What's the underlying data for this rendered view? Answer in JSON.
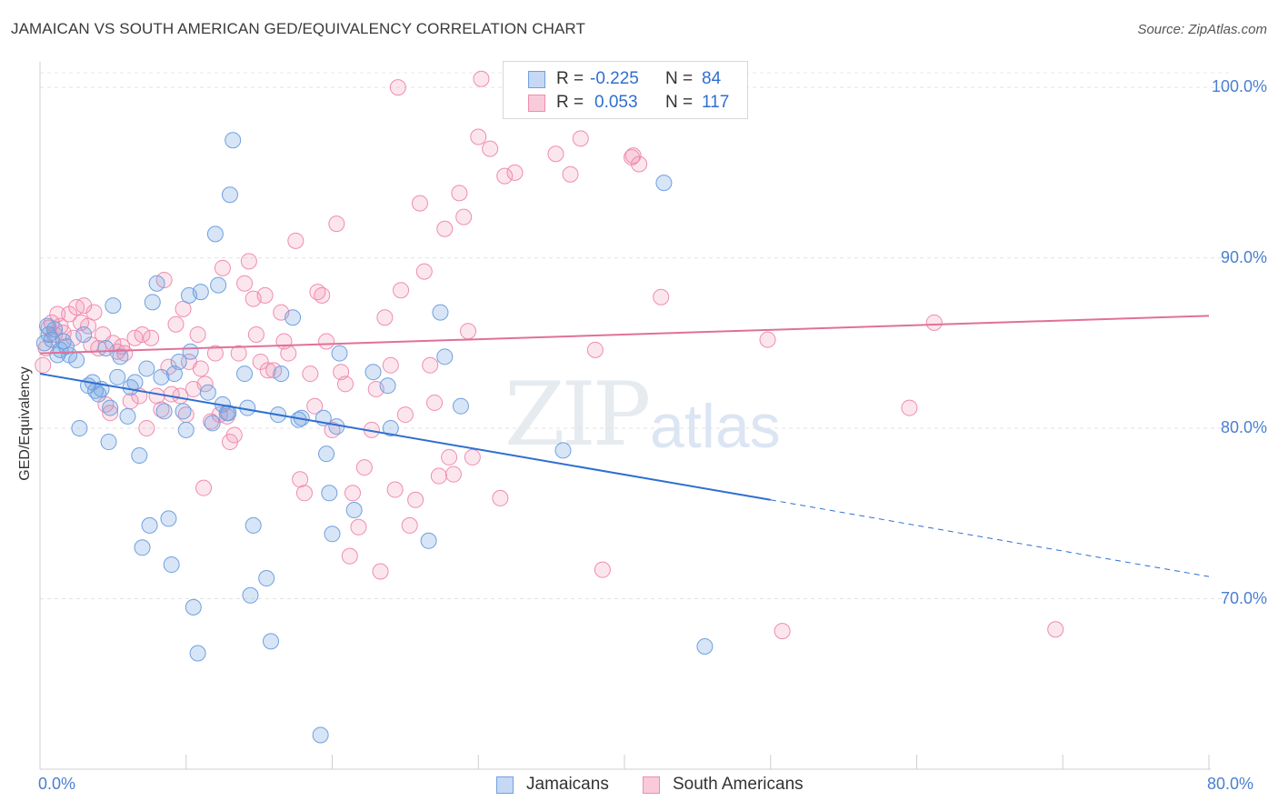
{
  "title": "JAMAICAN VS SOUTH AMERICAN GED/EQUIVALENCY CORRELATION CHART",
  "source": "Source: ZipAtlas.com",
  "watermark": {
    "zip": "ZIP",
    "atlas": "atlas"
  },
  "colors": {
    "jamaicans": "#6fa0e0",
    "south_americans": "#f08cae",
    "jam_line": "#2f6fd0",
    "sa_line": "#e0709a"
  },
  "legend": {
    "rows": [
      {
        "r_label": "R =",
        "r_value": "-0.225",
        "n_label": "N =",
        "n_value": "84"
      },
      {
        "r_label": "R =",
        "r_value": "0.053",
        "n_label": "N =",
        "n_value": "117"
      }
    ]
  },
  "bottom_legend": {
    "jamaicans": "Jamaicans",
    "south_americans": "South Americans"
  },
  "chart_data": {
    "type": "scatter",
    "title": "JAMAICAN VS SOUTH AMERICAN GED/EQUIVALENCY CORRELATION CHART",
    "xlabel": "",
    "ylabel": "GED/Equivalency",
    "xlim": [
      0,
      80
    ],
    "ylim": [
      60,
      101.5
    ],
    "y_ticks": [
      {
        "value": 70,
        "label": "70.0%"
      },
      {
        "value": 80,
        "label": "80.0%"
      },
      {
        "value": 90,
        "label": "90.0%"
      },
      {
        "value": 100,
        "label": "100.0%"
      }
    ],
    "x_tick_labels": [
      {
        "value": 0,
        "label": "0.0%"
      },
      {
        "value": 80,
        "label": "80.0%"
      }
    ],
    "grid": true,
    "series": [
      {
        "name": "Jamaicans",
        "r": -0.225,
        "n": 84,
        "trend": {
          "x0": 0,
          "y0": 83.2,
          "x1": 50,
          "y1": 75.8,
          "dashed_to_x": 80,
          "dashed_to_y": 71.3
        },
        "points": [
          [
            0.3,
            85.0
          ],
          [
            0.5,
            86.0
          ],
          [
            0.6,
            85.5
          ],
          [
            0.8,
            85.2
          ],
          [
            1.0,
            85.8
          ],
          [
            1.2,
            84.3
          ],
          [
            1.4,
            84.6
          ],
          [
            1.6,
            85.1
          ],
          [
            1.8,
            84.8
          ],
          [
            2.0,
            84.3
          ],
          [
            2.5,
            84.0
          ],
          [
            2.7,
            80.0
          ],
          [
            3.0,
            85.5
          ],
          [
            3.3,
            82.5
          ],
          [
            3.6,
            82.7
          ],
          [
            3.8,
            82.2
          ],
          [
            4.0,
            82.0
          ],
          [
            4.2,
            82.3
          ],
          [
            4.5,
            84.7
          ],
          [
            4.7,
            79.2
          ],
          [
            4.8,
            81.2
          ],
          [
            5.0,
            87.2
          ],
          [
            5.3,
            83.0
          ],
          [
            5.5,
            84.2
          ],
          [
            6.0,
            80.7
          ],
          [
            6.2,
            82.4
          ],
          [
            6.5,
            82.7
          ],
          [
            6.8,
            78.4
          ],
          [
            7.0,
            73.0
          ],
          [
            7.3,
            83.5
          ],
          [
            7.5,
            74.3
          ],
          [
            7.7,
            87.4
          ],
          [
            8.0,
            88.5
          ],
          [
            8.3,
            83.0
          ],
          [
            8.5,
            81.0
          ],
          [
            8.8,
            74.7
          ],
          [
            9.0,
            72.0
          ],
          [
            9.2,
            83.2
          ],
          [
            9.5,
            83.9
          ],
          [
            9.8,
            81.0
          ],
          [
            10.0,
            79.9
          ],
          [
            10.2,
            87.8
          ],
          [
            10.3,
            84.5
          ],
          [
            10.5,
            69.5
          ],
          [
            10.8,
            66.8
          ],
          [
            11.0,
            88.0
          ],
          [
            11.5,
            82.1
          ],
          [
            11.8,
            80.3
          ],
          [
            12.0,
            91.4
          ],
          [
            12.2,
            88.4
          ],
          [
            12.5,
            81.4
          ],
          [
            12.8,
            80.9
          ],
          [
            13.0,
            93.7
          ],
          [
            13.2,
            96.9
          ],
          [
            14.0,
            83.2
          ],
          [
            14.2,
            81.2
          ],
          [
            14.4,
            70.2
          ],
          [
            14.6,
            74.3
          ],
          [
            15.5,
            71.2
          ],
          [
            15.8,
            67.5
          ],
          [
            16.5,
            83.2
          ],
          [
            17.3,
            86.5
          ],
          [
            17.7,
            80.5
          ],
          [
            17.9,
            80.6
          ],
          [
            19.2,
            62.0
          ],
          [
            19.4,
            80.6
          ],
          [
            19.6,
            78.5
          ],
          [
            19.8,
            76.2
          ],
          [
            20.0,
            73.8
          ],
          [
            20.3,
            80.1
          ],
          [
            20.5,
            84.4
          ],
          [
            21.5,
            75.2
          ],
          [
            22.8,
            83.3
          ],
          [
            23.8,
            82.5
          ],
          [
            24.0,
            80.0
          ],
          [
            26.6,
            73.4
          ],
          [
            27.4,
            86.8
          ],
          [
            27.7,
            84.2
          ],
          [
            28.8,
            81.3
          ],
          [
            35.8,
            78.7
          ],
          [
            42.7,
            94.4
          ],
          [
            45.5,
            67.2
          ],
          [
            12.9,
            80.9
          ],
          [
            16.3,
            80.8
          ]
        ]
      },
      {
        "name": "South Americans",
        "r": 0.053,
        "n": 117,
        "trend": {
          "x0": 0,
          "y0": 84.4,
          "x1": 80,
          "y1": 86.6
        },
        "points": [
          [
            0.2,
            83.7
          ],
          [
            0.4,
            84.7
          ],
          [
            0.6,
            85.9
          ],
          [
            0.8,
            86.2
          ],
          [
            1.0,
            85.5
          ],
          [
            1.2,
            86.7
          ],
          [
            1.4,
            86.0
          ],
          [
            1.6,
            85.6
          ],
          [
            2.0,
            86.7
          ],
          [
            2.3,
            85.3
          ],
          [
            2.5,
            87.1
          ],
          [
            2.8,
            86.2
          ],
          [
            3.0,
            87.2
          ],
          [
            3.3,
            86.0
          ],
          [
            3.5,
            84.9
          ],
          [
            3.7,
            86.8
          ],
          [
            4.0,
            84.7
          ],
          [
            4.3,
            85.5
          ],
          [
            4.5,
            81.4
          ],
          [
            4.8,
            80.9
          ],
          [
            5.0,
            85.0
          ],
          [
            5.3,
            84.5
          ],
          [
            5.6,
            84.8
          ],
          [
            5.8,
            84.4
          ],
          [
            6.2,
            81.6
          ],
          [
            6.5,
            85.3
          ],
          [
            6.8,
            81.9
          ],
          [
            7.0,
            85.5
          ],
          [
            7.3,
            80.0
          ],
          [
            7.6,
            85.3
          ],
          [
            8.0,
            81.9
          ],
          [
            8.3,
            81.1
          ],
          [
            8.5,
            88.7
          ],
          [
            8.8,
            83.6
          ],
          [
            9.0,
            82.0
          ],
          [
            9.3,
            86.1
          ],
          [
            9.6,
            81.9
          ],
          [
            9.8,
            87.0
          ],
          [
            10.0,
            80.8
          ],
          [
            10.2,
            83.9
          ],
          [
            10.5,
            82.3
          ],
          [
            10.8,
            85.5
          ],
          [
            11.0,
            83.5
          ],
          [
            11.2,
            76.5
          ],
          [
            11.3,
            82.6
          ],
          [
            11.7,
            80.4
          ],
          [
            12.0,
            84.4
          ],
          [
            12.3,
            80.8
          ],
          [
            12.5,
            89.4
          ],
          [
            12.8,
            80.7
          ],
          [
            13.0,
            79.2
          ],
          [
            13.3,
            79.6
          ],
          [
            13.6,
            84.4
          ],
          [
            14.0,
            88.5
          ],
          [
            14.3,
            89.8
          ],
          [
            14.6,
            87.6
          ],
          [
            14.8,
            85.5
          ],
          [
            15.1,
            83.9
          ],
          [
            15.4,
            87.8
          ],
          [
            15.6,
            83.4
          ],
          [
            16.0,
            83.4
          ],
          [
            16.5,
            86.8
          ],
          [
            16.7,
            85.1
          ],
          [
            17.0,
            84.4
          ],
          [
            17.5,
            91.0
          ],
          [
            17.8,
            77.0
          ],
          [
            18.1,
            76.2
          ],
          [
            18.5,
            83.2
          ],
          [
            18.8,
            81.3
          ],
          [
            19.0,
            88.0
          ],
          [
            19.3,
            87.8
          ],
          [
            19.6,
            85.1
          ],
          [
            20.0,
            79.9
          ],
          [
            20.3,
            92.0
          ],
          [
            20.6,
            83.3
          ],
          [
            20.9,
            82.6
          ],
          [
            21.2,
            72.5
          ],
          [
            21.4,
            76.2
          ],
          [
            21.8,
            74.2
          ],
          [
            22.2,
            77.7
          ],
          [
            22.7,
            79.9
          ],
          [
            23.0,
            82.3
          ],
          [
            23.3,
            71.6
          ],
          [
            23.6,
            86.5
          ],
          [
            24.0,
            83.7
          ],
          [
            24.3,
            76.4
          ],
          [
            24.7,
            88.1
          ],
          [
            25.0,
            80.8
          ],
          [
            25.3,
            74.3
          ],
          [
            25.7,
            75.8
          ],
          [
            26.0,
            93.2
          ],
          [
            26.3,
            89.2
          ],
          [
            26.7,
            83.7
          ],
          [
            27.0,
            81.5
          ],
          [
            27.3,
            77.2
          ],
          [
            27.7,
            91.7
          ],
          [
            28.0,
            78.3
          ],
          [
            28.3,
            77.3
          ],
          [
            28.7,
            93.8
          ],
          [
            29.0,
            92.4
          ],
          [
            29.3,
            85.7
          ],
          [
            29.6,
            78.3
          ],
          [
            30.0,
            97.1
          ],
          [
            30.8,
            96.4
          ],
          [
            31.5,
            75.9
          ],
          [
            31.8,
            94.8
          ],
          [
            32.5,
            95.0
          ],
          [
            35.3,
            96.1
          ],
          [
            36.3,
            94.9
          ],
          [
            37.0,
            97.0
          ],
          [
            38.0,
            84.6
          ],
          [
            38.5,
            71.7
          ],
          [
            40.5,
            95.9
          ],
          [
            41.0,
            95.5
          ],
          [
            42.5,
            87.7
          ],
          [
            49.8,
            85.2
          ],
          [
            50.8,
            68.1
          ],
          [
            59.5,
            81.2
          ],
          [
            61.2,
            86.2
          ],
          [
            69.5,
            68.2
          ],
          [
            24.5,
            100.0
          ],
          [
            30.2,
            100.5
          ],
          [
            40.6,
            96.0
          ]
        ]
      }
    ]
  }
}
